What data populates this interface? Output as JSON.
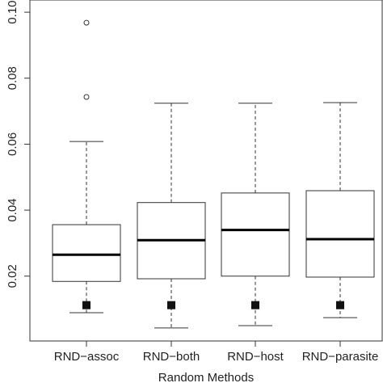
{
  "chart_data": {
    "type": "box",
    "title": "",
    "xlabel": "Random Methods",
    "ylabel": "",
    "ylim": [
      0.0,
      0.1
    ],
    "yticks": [
      0.02,
      0.04,
      0.06,
      0.08,
      0.1
    ],
    "ytick_labels": [
      "0.02",
      "0.04",
      "0.06",
      "0.08",
      "0.10"
    ],
    "categories": [
      "RND−assoc",
      "RND−both",
      "RND−host",
      "RND−parasite"
    ],
    "boxes": [
      {
        "whisker_low": 0.0089,
        "q1": 0.0184,
        "median": 0.0265,
        "q3": 0.0356,
        "whisker_high": 0.0608,
        "outliers": [
          0.0743,
          0.0968
        ],
        "marker": 0.0112
      },
      {
        "whisker_low": 0.0043,
        "q1": 0.0192,
        "median": 0.0309,
        "q3": 0.0423,
        "whisker_high": 0.0724,
        "outliers": [],
        "marker": 0.0112
      },
      {
        "whisker_low": 0.005,
        "q1": 0.02,
        "median": 0.034,
        "q3": 0.0452,
        "whisker_high": 0.0724,
        "outliers": [],
        "marker": 0.0112
      },
      {
        "whisker_low": 0.0074,
        "q1": 0.0197,
        "median": 0.0312,
        "q3": 0.0459,
        "whisker_high": 0.0726,
        "outliers": [],
        "marker": 0.0112
      }
    ],
    "grid": false,
    "legend": "none"
  }
}
